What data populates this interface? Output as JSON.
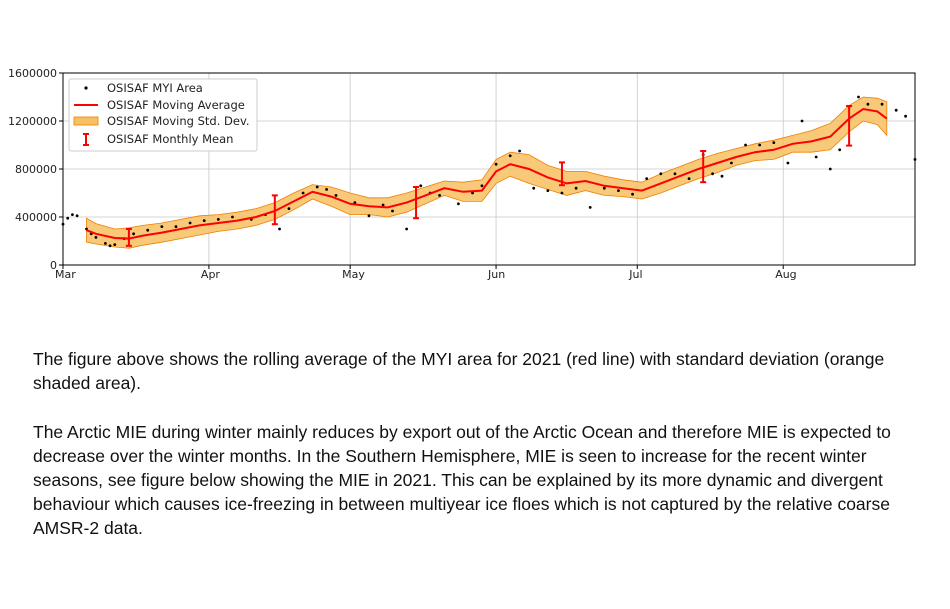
{
  "chart_data": {
    "type": "line",
    "title": "",
    "xlabel": "",
    "ylabel": "",
    "xlim": [
      "2021-03-01",
      "2021-08-29"
    ],
    "ylim": [
      0,
      1600000
    ],
    "yticks": [
      0,
      400000,
      800000,
      1200000,
      1600000
    ],
    "ytick_labels": [
      "0",
      "400000",
      "800000",
      "1200000",
      "1600000"
    ],
    "xticks": [
      "2021-03-01",
      "2021-04-01",
      "2021-05-01",
      "2021-06-01",
      "2021-07-01",
      "2021-08-01"
    ],
    "xtick_labels": [
      "Mar",
      "Apr",
      "May",
      "Jun",
      "Jul",
      "Aug"
    ],
    "grid": true,
    "legend_position": "top-left",
    "legend": [
      "OSISAF MYI Area",
      "OSISAF Moving Average",
      "OSISAF Moving Std. Dev.",
      "OSISAF Monthly Mean"
    ],
    "colors": {
      "scatter": "#000000",
      "average": "#ff0000",
      "std_fill": "#f7c060",
      "std_edge": "#f08000",
      "monthly": "#ff0000"
    },
    "moving_average": {
      "x": [
        "2021-03-06",
        "2021-03-08",
        "2021-03-12",
        "2021-03-15",
        "2021-03-18",
        "2021-03-22",
        "2021-03-26",
        "2021-03-30",
        "2021-04-03",
        "2021-04-07",
        "2021-04-11",
        "2021-04-15",
        "2021-04-19",
        "2021-04-23",
        "2021-04-27",
        "2021-05-01",
        "2021-05-05",
        "2021-05-09",
        "2021-05-13",
        "2021-05-17",
        "2021-05-21",
        "2021-05-25",
        "2021-05-29",
        "2021-06-01",
        "2021-06-04",
        "2021-06-08",
        "2021-06-12",
        "2021-06-16",
        "2021-06-20",
        "2021-06-24",
        "2021-06-28",
        "2021-07-02",
        "2021-07-06",
        "2021-07-10",
        "2021-07-14",
        "2021-07-18",
        "2021-07-22",
        "2021-07-26",
        "2021-07-30",
        "2021-08-03",
        "2021-08-07",
        "2021-08-11",
        "2021-08-15",
        "2021-08-18",
        "2021-08-21",
        "2021-08-23"
      ],
      "y": [
        290000,
        260000,
        225000,
        220000,
        245000,
        270000,
        300000,
        330000,
        350000,
        370000,
        400000,
        450000,
        530000,
        610000,
        570000,
        510000,
        490000,
        480000,
        520000,
        580000,
        640000,
        610000,
        620000,
        780000,
        840000,
        800000,
        730000,
        680000,
        700000,
        660000,
        640000,
        620000,
        680000,
        740000,
        800000,
        850000,
        900000,
        940000,
        960000,
        1010000,
        1030000,
        1070000,
        1220000,
        1300000,
        1280000,
        1220000
      ]
    },
    "std_upper": [
      390000,
      345000,
      300000,
      310000,
      330000,
      350000,
      380000,
      410000,
      420000,
      440000,
      470000,
      520000,
      600000,
      670000,
      650000,
      600000,
      560000,
      560000,
      600000,
      650000,
      700000,
      690000,
      710000,
      880000,
      940000,
      920000,
      830000,
      780000,
      780000,
      740000,
      710000,
      690000,
      760000,
      820000,
      880000,
      930000,
      970000,
      1010000,
      1040000,
      1080000,
      1120000,
      1180000,
      1330000,
      1400000,
      1390000,
      1360000
    ],
    "std_lower": [
      190000,
      175000,
      150000,
      140000,
      165000,
      190000,
      220000,
      250000,
      280000,
      300000,
      330000,
      380000,
      460000,
      550000,
      490000,
      420000,
      420000,
      400000,
      440000,
      510000,
      580000,
      530000,
      530000,
      680000,
      740000,
      680000,
      630000,
      580000,
      620000,
      580000,
      570000,
      550000,
      600000,
      660000,
      720000,
      770000,
      830000,
      870000,
      880000,
      940000,
      940000,
      960000,
      1110000,
      1200000,
      1170000,
      1080000
    ],
    "myi_area": {
      "x": [
        "2021-03-01",
        "2021-03-02",
        "2021-03-03",
        "2021-03-04",
        "2021-03-06",
        "2021-03-07",
        "2021-03-08",
        "2021-03-10",
        "2021-03-11",
        "2021-03-12",
        "2021-03-14",
        "2021-03-16",
        "2021-03-19",
        "2021-03-22",
        "2021-03-25",
        "2021-03-28",
        "2021-03-31",
        "2021-04-03",
        "2021-04-06",
        "2021-04-10",
        "2021-04-13",
        "2021-04-16",
        "2021-04-18",
        "2021-04-21",
        "2021-04-24",
        "2021-04-26",
        "2021-04-28",
        "2021-05-02",
        "2021-05-05",
        "2021-05-08",
        "2021-05-10",
        "2021-05-13",
        "2021-05-16",
        "2021-05-18",
        "2021-05-20",
        "2021-05-24",
        "2021-05-27",
        "2021-05-29",
        "2021-06-01",
        "2021-06-04",
        "2021-06-06",
        "2021-06-09",
        "2021-06-12",
        "2021-06-15",
        "2021-06-18",
        "2021-06-21",
        "2021-06-24",
        "2021-06-27",
        "2021-06-30",
        "2021-07-03",
        "2021-07-06",
        "2021-07-09",
        "2021-07-12",
        "2021-07-15",
        "2021-07-17",
        "2021-07-19",
        "2021-07-21",
        "2021-07-24",
        "2021-07-27",
        "2021-07-30",
        "2021-08-02",
        "2021-08-05",
        "2021-08-08",
        "2021-08-11",
        "2021-08-13",
        "2021-08-15",
        "2021-08-17",
        "2021-08-19",
        "2021-08-22",
        "2021-08-25",
        "2021-08-27",
        "2021-08-29"
      ],
      "y": [
        340000,
        390000,
        420000,
        410000,
        300000,
        260000,
        230000,
        180000,
        160000,
        170000,
        220000,
        260000,
        290000,
        320000,
        320000,
        350000,
        370000,
        380000,
        400000,
        380000,
        420000,
        300000,
        470000,
        600000,
        650000,
        630000,
        580000,
        520000,
        410000,
        500000,
        450000,
        300000,
        660000,
        600000,
        580000,
        510000,
        600000,
        660000,
        840000,
        910000,
        950000,
        640000,
        620000,
        600000,
        640000,
        480000,
        640000,
        620000,
        590000,
        720000,
        760000,
        760000,
        720000,
        920000,
        760000,
        740000,
        850000,
        1000000,
        1000000,
        1020000,
        850000,
        1200000,
        900000,
        800000,
        960000,
        1320000,
        1400000,
        1340000,
        1340000,
        1290000,
        1240000,
        880000
      ]
    },
    "monthly_mean": {
      "x": [
        "2021-03-15",
        "2021-04-15",
        "2021-05-15",
        "2021-06-15",
        "2021-07-15",
        "2021-08-15"
      ],
      "y": [
        230000,
        460000,
        520000,
        760000,
        820000,
        1160000
      ],
      "err": [
        70000,
        120000,
        130000,
        95000,
        130000,
        165000
      ]
    }
  },
  "text": {
    "paragraph1": "The figure above shows the rolling average of the MYI area for 2021 (red line) with standard deviation (orange shaded area).",
    "paragraph2": "The Arctic MIE during winter mainly reduces by export out of the Arctic Ocean and therefore MIE is expected to decrease over the winter months. In the Southern Hemisphere, MIE is seen to increase for the recent winter seasons, see figure below showing the MIE in 2021. This can be explained by its more dynamic and divergent behaviour which causes ice-freezing in between multiyear ice floes which is not captured by the relative coarse AMSR-2 data."
  }
}
